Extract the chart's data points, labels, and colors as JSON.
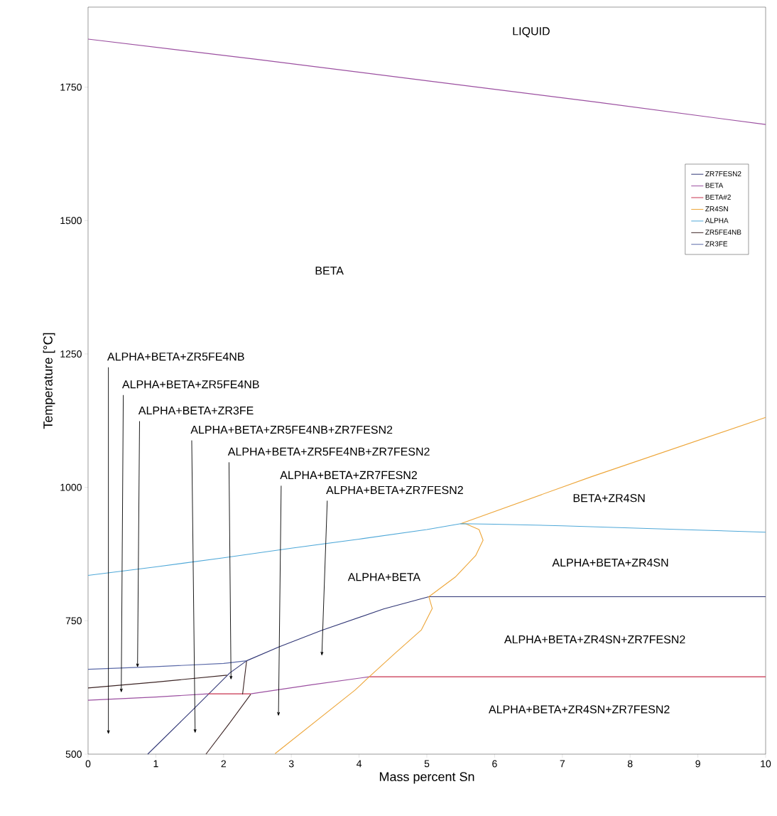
{
  "chart_data": {
    "type": "line",
    "xlabel": "Mass percent Sn",
    "ylabel": "Temperature [°C]",
    "xlim": [
      0,
      10
    ],
    "ylim": [
      500,
      1900
    ],
    "xticks": [
      0,
      1,
      2,
      3,
      4,
      5,
      6,
      7,
      8,
      9,
      10
    ],
    "yticks": [
      500,
      750,
      1000,
      1250,
      1500,
      1750
    ],
    "legend": "top right",
    "grid": false,
    "marker": "none",
    "line_style": "solid",
    "series": [
      {
        "name": "ZR7FESN2",
        "color": "#2f3575",
        "x": [
          0.88,
          1.53,
          2.09,
          2.34,
          2.82,
          3.45,
          4.36,
          5.03,
          10
        ],
        "values": [
          500,
          581,
          652,
          675,
          701,
          732,
          772,
          795,
          795
        ]
      },
      {
        "name": "BETA",
        "color": "#9b4fa0",
        "x": [
          0,
          2.5,
          5,
          7.5,
          10,
          null,
          0,
          1,
          1.77,
          null,
          2.4,
          3.3,
          4.15
        ],
        "values": [
          1840,
          1802,
          1762,
          1722,
          1680,
          null,
          601,
          607,
          613,
          null,
          613,
          630,
          645
        ]
      },
      {
        "name": "BETA#2",
        "color": "#c8324e",
        "x": [
          1.77,
          2.4,
          null,
          4.15,
          10
        ],
        "values": [
          613,
          613,
          null,
          645,
          645
        ]
      },
      {
        "name": "ZR4SN",
        "color": "#eda63a",
        "x": [
          2.76,
          3.94,
          4.15,
          4.53,
          4.92,
          5.08,
          5.03,
          5.42,
          5.72,
          5.83,
          5.77,
          5.57,
          5.5,
          7.43,
          10
        ],
        "values": [
          501,
          620,
          645,
          689,
          733,
          773,
          795,
          832,
          872,
          901,
          921,
          932,
          932,
          1020,
          1131
        ]
      },
      {
        "name": "ALPHA",
        "color": "#4fa8d8",
        "x": [
          0,
          1,
          2,
          3,
          4,
          5,
          5.5,
          6,
          7,
          8,
          9,
          10
        ],
        "values": [
          835,
          851,
          868,
          886,
          903,
          921,
          932,
          931,
          928,
          924,
          920,
          916
        ]
      },
      {
        "name": "ZR5FE4NB",
        "color": "#3c2424",
        "x": [
          0,
          1,
          2.05,
          null,
          1.74,
          2.07,
          2.4,
          null,
          2.34,
          2.28
        ],
        "values": [
          624,
          635,
          648,
          null,
          500,
          555,
          612,
          null,
          675,
          612
        ]
      },
      {
        "name": "ZR3FE",
        "color": "#5b6aa8",
        "x": [
          0,
          1,
          2,
          2.34
        ],
        "values": [
          659,
          664,
          670,
          675
        ]
      }
    ],
    "annotations": [
      "ALPHA+BETA+ZR5FE4NB",
      "ALPHA+BETA+ZR5FE4NB",
      {
        "text": "ALPHA+BETA+ZR3FE",
        "x": 0.73,
        "y": 662
      },
      "ALPHA+BETA+ZR5FE4NB+ZR7FESN2",
      "ALPHA+BETA+ZR5FE4NB+ZR7FESN2",
      "ALPHA+BETA+ZR7FESN2",
      "ALPHA+BETA+ZR7FESN2",
      "LIQUID",
      "BETA",
      "BETA+ZR4SN",
      "ALPHA+BETA",
      "ALPHA+BETA+ZR4SN",
      "ALPHA+BETA+ZR4SN+ZR7FESN2",
      "ALPHA+BETA+ZR4SN+ZR7FESN2"
    ]
  }
}
